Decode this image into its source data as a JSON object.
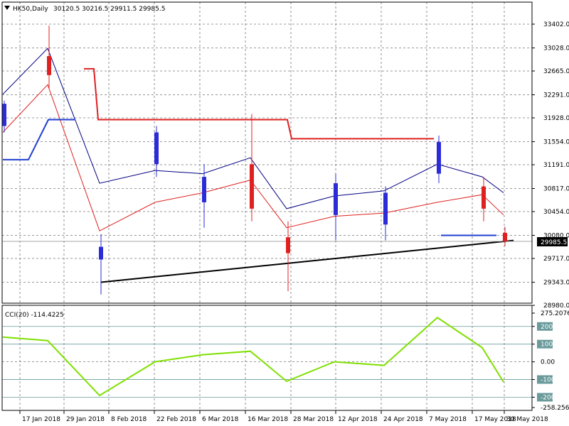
{
  "header": {
    "symbol": "HK50,Daily",
    "ohlc": "30120.5 30216.5 29911.5 29985.5",
    "indicator_label": "CCI(20) -114.4225"
  },
  "price_axis": {
    "ticks": [
      "33402.0",
      "33028.0",
      "32665.0",
      "32291.0",
      "31928.0",
      "31554.0",
      "31191.0",
      "30817.0",
      "30454.0",
      "30080.0",
      "29717.0",
      "29343.0",
      "28980.0"
    ],
    "current_price": "29985.5"
  },
  "cci_axis": {
    "ticks": [
      "275.2076",
      "200",
      "100",
      "0.00",
      "-100",
      "-200",
      "-258.2563"
    ]
  },
  "date_labels": [
    "17 Jan 2018",
    "29 Jan 2018",
    "8 Feb 2018",
    "22 Feb 2018",
    "6 Mar 2018",
    "16 Mar 2018",
    "28 Mar 2018",
    "12 Apr 2018",
    "24 Apr 2018",
    "7 May 2018",
    "17 May 2018",
    "30 May 2018"
  ],
  "colors": {
    "bull": "#2b2bd8",
    "bear": "#e02020",
    "ma_fast": "#000080",
    "ma_slow": "#e02020",
    "sar_resistance": "#e02020",
    "sar_support": "#1f3fd0",
    "cci": "#7fe000",
    "level_line": "#6a9a9a",
    "grid": "#777777"
  },
  "chart_data": [
    {
      "type": "candlestick",
      "title": "HK50,Daily",
      "ylim": [
        28980,
        33402
      ],
      "x": [
        "17 Jan 2018",
        "29 Jan 2018",
        "8 Feb 2018",
        "22 Feb 2018",
        "6 Mar 2018",
        "16 Mar 2018",
        "28 Mar 2018",
        "12 Apr 2018",
        "24 Apr 2018",
        "7 May 2018",
        "17 May 2018",
        "30 May 2018"
      ],
      "ohlc": [
        [
          31800,
          32200,
          31700,
          32150
        ],
        [
          32900,
          33380,
          32400,
          32600
        ],
        [
          29700,
          30100,
          29150,
          29900
        ],
        [
          31200,
          31800,
          31000,
          31700
        ],
        [
          30600,
          31200,
          30200,
          31000
        ],
        [
          31200,
          31990,
          30300,
          30500
        ],
        [
          30050,
          30300,
          29200,
          29800
        ],
        [
          30400,
          31050,
          30000,
          30900
        ],
        [
          30250,
          30850,
          30000,
          30750
        ],
        [
          31050,
          31650,
          30900,
          31550
        ],
        [
          30850,
          31000,
          30300,
          30500
        ],
        [
          30120.5,
          30216.5,
          29911.5,
          29985.5
        ]
      ],
      "series": [
        {
          "name": "",
          "type": "moving-average-fast",
          "values": [
            32300,
            33020,
            30900,
            31100,
            31050,
            31300,
            30500,
            30700,
            30780,
            31200,
            31000,
            30750
          ]
        },
        {
          "name": "",
          "type": "moving-average-slow",
          "values": [
            31700,
            32450,
            30150,
            30600,
            30750,
            30950,
            30200,
            30380,
            30430,
            30600,
            30720,
            30400
          ]
        }
      ],
      "resistance_steps": [
        {
          "from": "29 Jan 2018",
          "to": "2 Feb 2018",
          "value": 32700
        },
        {
          "from": "6 Feb 2018",
          "to": "23 Mar 2018",
          "value": 31900
        },
        {
          "from": "26 Mar 2018",
          "to": "8 May 2018",
          "value": 31600
        }
      ],
      "support_steps": [
        {
          "from": "17 Jan 2018",
          "to": "22 Jan 2018",
          "value": 31270
        },
        {
          "from": "23 Jan 2018",
          "to": "25 Jan 2018",
          "value": 31900
        }
      ],
      "trendline": {
        "from": [
          "8 Feb 2018",
          29343
        ],
        "to": [
          "30 May 2018",
          30000
        ]
      },
      "horizontal_marker": {
        "from": "17 May 2018",
        "to": "28 May 2018",
        "value": 30080
      },
      "current_price": 29985.5
    },
    {
      "type": "line",
      "title": "CCI(20) -114.4225",
      "ylim": [
        -258.2563,
        275.2076
      ],
      "levels": [
        200,
        100,
        0,
        -100,
        -200
      ],
      "x": [
        "17 Jan 2018",
        "29 Jan 2018",
        "8 Feb 2018",
        "22 Feb 2018",
        "6 Mar 2018",
        "16 Mar 2018",
        "28 Mar 2018",
        "12 Apr 2018",
        "24 Apr 2018",
        "7 May 2018",
        "17 May 2018",
        "30 May 2018"
      ],
      "values": [
        140,
        120,
        -190,
        0,
        40,
        60,
        -110,
        0,
        -20,
        250,
        80,
        -114.4225
      ]
    }
  ]
}
